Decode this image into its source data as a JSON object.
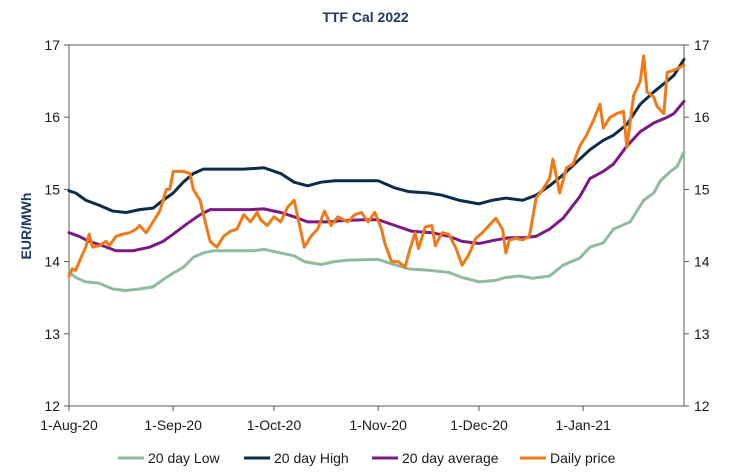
{
  "chart_data": {
    "type": "line",
    "title": "TTF Cal 2022",
    "ylabel": "EUR/MWh",
    "xlabel": "",
    "ylim": [
      12,
      17
    ],
    "yticks": [
      "12",
      "13",
      "14",
      "15",
      "16",
      "17"
    ],
    "secondary_yticks": [
      "12",
      "13",
      "14",
      "15",
      "16",
      "17"
    ],
    "xlim": [
      "2020-08-01",
      "2021-01-31"
    ],
    "xticks": [
      {
        "label": "1-Aug-20",
        "date": "2020-08-01"
      },
      {
        "label": "1-Sep-20",
        "date": "2020-09-01"
      },
      {
        "label": "1-Oct-20",
        "date": "2020-10-01"
      },
      {
        "label": "1-Nov-20",
        "date": "2020-11-01"
      },
      {
        "label": "1-Dec-20",
        "date": "2020-12-01"
      },
      {
        "label": "1-Jan-21",
        "date": "2021-01-01"
      }
    ],
    "grid": "none",
    "legend_position": "bottom",
    "series": [
      {
        "name": "20 day Low",
        "color": "#8fbc9f",
        "points": [
          [
            "2020-08-01",
            13.85
          ],
          [
            "2020-08-03",
            13.78
          ],
          [
            "2020-08-06",
            13.72
          ],
          [
            "2020-08-10",
            13.7
          ],
          [
            "2020-08-14",
            13.62
          ],
          [
            "2020-08-18",
            13.6
          ],
          [
            "2020-08-22",
            13.62
          ],
          [
            "2020-08-26",
            13.65
          ],
          [
            "2020-08-29",
            13.75
          ],
          [
            "2020-09-01",
            13.84
          ],
          [
            "2020-09-04",
            13.92
          ],
          [
            "2020-09-07",
            14.06
          ],
          [
            "2020-09-10",
            14.12
          ],
          [
            "2020-09-13",
            14.15
          ],
          [
            "2020-09-18",
            14.15
          ],
          [
            "2020-09-25",
            14.15
          ],
          [
            "2020-09-28",
            14.17
          ],
          [
            "2020-10-03",
            14.12
          ],
          [
            "2020-10-07",
            14.08
          ],
          [
            "2020-10-10",
            14.0
          ],
          [
            "2020-10-15",
            13.96
          ],
          [
            "2020-10-19",
            14.0
          ],
          [
            "2020-10-23",
            14.02
          ],
          [
            "2020-11-01",
            14.03
          ],
          [
            "2020-11-05",
            13.97
          ],
          [
            "2020-11-10",
            13.9
          ],
          [
            "2020-11-16",
            13.88
          ],
          [
            "2020-11-22",
            13.85
          ],
          [
            "2020-11-26",
            13.78
          ],
          [
            "2020-12-01",
            13.72
          ],
          [
            "2020-12-06",
            13.74
          ],
          [
            "2020-12-09",
            13.78
          ],
          [
            "2020-12-13",
            13.8
          ],
          [
            "2020-12-17",
            13.77
          ],
          [
            "2020-12-22",
            13.8
          ],
          [
            "2020-12-26",
            13.95
          ],
          [
            "2020-12-31",
            14.05
          ],
          [
            "2021-01-03",
            14.2
          ],
          [
            "2021-01-07",
            14.26
          ],
          [
            "2021-01-10",
            14.45
          ],
          [
            "2021-01-15",
            14.55
          ],
          [
            "2021-01-19",
            14.85
          ],
          [
            "2021-01-22",
            14.95
          ],
          [
            "2021-01-24",
            15.12
          ],
          [
            "2021-01-27",
            15.25
          ],
          [
            "2021-01-29",
            15.32
          ],
          [
            "2021-01-31",
            15.52
          ]
        ]
      },
      {
        "name": "20 day High",
        "color": "#0d2c4a",
        "points": [
          [
            "2020-08-01",
            14.98
          ],
          [
            "2020-08-03",
            14.95
          ],
          [
            "2020-08-06",
            14.85
          ],
          [
            "2020-08-10",
            14.78
          ],
          [
            "2020-08-14",
            14.7
          ],
          [
            "2020-08-18",
            14.68
          ],
          [
            "2020-08-22",
            14.72
          ],
          [
            "2020-08-26",
            14.74
          ],
          [
            "2020-08-29",
            14.85
          ],
          [
            "2020-09-01",
            14.95
          ],
          [
            "2020-09-04",
            15.1
          ],
          [
            "2020-09-07",
            15.22
          ],
          [
            "2020-09-10",
            15.28
          ],
          [
            "2020-09-14",
            15.28
          ],
          [
            "2020-09-22",
            15.28
          ],
          [
            "2020-09-28",
            15.3
          ],
          [
            "2020-10-03",
            15.22
          ],
          [
            "2020-10-07",
            15.1
          ],
          [
            "2020-10-11",
            15.05
          ],
          [
            "2020-10-15",
            15.1
          ],
          [
            "2020-10-19",
            15.12
          ],
          [
            "2020-10-26",
            15.12
          ],
          [
            "2020-11-01",
            15.12
          ],
          [
            "2020-11-06",
            15.02
          ],
          [
            "2020-11-10",
            14.97
          ],
          [
            "2020-11-16",
            14.95
          ],
          [
            "2020-11-20",
            14.92
          ],
          [
            "2020-11-25",
            14.85
          ],
          [
            "2020-12-01",
            14.8
          ],
          [
            "2020-12-05",
            14.85
          ],
          [
            "2020-12-09",
            14.88
          ],
          [
            "2020-12-14",
            14.85
          ],
          [
            "2020-12-18",
            14.92
          ],
          [
            "2020-12-22",
            15.05
          ],
          [
            "2020-12-26",
            15.2
          ],
          [
            "2020-12-31",
            15.42
          ],
          [
            "2021-01-03",
            15.55
          ],
          [
            "2021-01-07",
            15.68
          ],
          [
            "2021-01-10",
            15.75
          ],
          [
            "2021-01-14",
            15.9
          ],
          [
            "2021-01-18",
            16.18
          ],
          [
            "2021-01-22",
            16.35
          ],
          [
            "2021-01-26",
            16.5
          ],
          [
            "2021-01-28",
            16.58
          ],
          [
            "2021-01-31",
            16.8
          ]
        ]
      },
      {
        "name": "20 day average",
        "color": "#7b1a86",
        "points": [
          [
            "2020-08-01",
            14.4
          ],
          [
            "2020-08-04",
            14.35
          ],
          [
            "2020-08-07",
            14.28
          ],
          [
            "2020-08-11",
            14.22
          ],
          [
            "2020-08-15",
            14.15
          ],
          [
            "2020-08-20",
            14.15
          ],
          [
            "2020-08-25",
            14.2
          ],
          [
            "2020-08-29",
            14.28
          ],
          [
            "2020-09-01",
            14.38
          ],
          [
            "2020-09-05",
            14.52
          ],
          [
            "2020-09-09",
            14.65
          ],
          [
            "2020-09-12",
            14.72
          ],
          [
            "2020-09-18",
            14.72
          ],
          [
            "2020-09-24",
            14.72
          ],
          [
            "2020-09-28",
            14.73
          ],
          [
            "2020-10-03",
            14.68
          ],
          [
            "2020-10-07",
            14.62
          ],
          [
            "2020-10-11",
            14.55
          ],
          [
            "2020-10-17",
            14.55
          ],
          [
            "2020-10-22",
            14.57
          ],
          [
            "2020-10-28",
            14.58
          ],
          [
            "2020-11-01",
            14.58
          ],
          [
            "2020-11-06",
            14.5
          ],
          [
            "2020-11-11",
            14.42
          ],
          [
            "2020-11-17",
            14.4
          ],
          [
            "2020-11-22",
            14.35
          ],
          [
            "2020-11-26",
            14.28
          ],
          [
            "2020-12-01",
            14.25
          ],
          [
            "2020-12-06",
            14.3
          ],
          [
            "2020-12-10",
            14.33
          ],
          [
            "2020-12-14",
            14.33
          ],
          [
            "2020-12-18",
            14.35
          ],
          [
            "2020-12-22",
            14.45
          ],
          [
            "2020-12-26",
            14.6
          ],
          [
            "2020-12-31",
            14.9
          ],
          [
            "2021-01-03",
            15.15
          ],
          [
            "2021-01-07",
            15.25
          ],
          [
            "2021-01-10",
            15.35
          ],
          [
            "2021-01-14",
            15.6
          ],
          [
            "2021-01-18",
            15.8
          ],
          [
            "2021-01-22",
            15.92
          ],
          [
            "2021-01-26",
            16.0
          ],
          [
            "2021-01-28",
            16.05
          ],
          [
            "2021-01-31",
            16.22
          ]
        ]
      },
      {
        "name": "Daily price",
        "color": "#f07a18",
        "points": [
          [
            "2020-08-01",
            13.8
          ],
          [
            "2020-08-02",
            13.9
          ],
          [
            "2020-08-03",
            13.88
          ],
          [
            "2020-08-05",
            14.1
          ],
          [
            "2020-08-06",
            14.2
          ],
          [
            "2020-08-07",
            14.38
          ],
          [
            "2020-08-08",
            14.2
          ],
          [
            "2020-08-10",
            14.22
          ],
          [
            "2020-08-12",
            14.28
          ],
          [
            "2020-08-13",
            14.22
          ],
          [
            "2020-08-15",
            14.35
          ],
          [
            "2020-08-17",
            14.38
          ],
          [
            "2020-08-19",
            14.4
          ],
          [
            "2020-08-21",
            14.45
          ],
          [
            "2020-08-22",
            14.5
          ],
          [
            "2020-08-24",
            14.4
          ],
          [
            "2020-08-26",
            14.55
          ],
          [
            "2020-08-28",
            14.7
          ],
          [
            "2020-08-30",
            15.0
          ],
          [
            "2020-08-31",
            15.0
          ],
          [
            "2020-09-01",
            15.25
          ],
          [
            "2020-09-04",
            15.25
          ],
          [
            "2020-09-06",
            15.22
          ],
          [
            "2020-09-07",
            15.0
          ],
          [
            "2020-09-09",
            14.85
          ],
          [
            "2020-09-10",
            14.65
          ],
          [
            "2020-09-12",
            14.28
          ],
          [
            "2020-09-14",
            14.2
          ],
          [
            "2020-09-16",
            14.35
          ],
          [
            "2020-09-18",
            14.42
          ],
          [
            "2020-09-20",
            14.45
          ],
          [
            "2020-09-22",
            14.65
          ],
          [
            "2020-09-24",
            14.55
          ],
          [
            "2020-09-26",
            14.68
          ],
          [
            "2020-09-27",
            14.58
          ],
          [
            "2020-09-29",
            14.5
          ],
          [
            "2020-10-01",
            14.62
          ],
          [
            "2020-10-03",
            14.55
          ],
          [
            "2020-10-05",
            14.75
          ],
          [
            "2020-10-07",
            14.85
          ],
          [
            "2020-10-10",
            14.2
          ],
          [
            "2020-10-12",
            14.35
          ],
          [
            "2020-10-14",
            14.45
          ],
          [
            "2020-10-16",
            14.7
          ],
          [
            "2020-10-18",
            14.5
          ],
          [
            "2020-10-20",
            14.62
          ],
          [
            "2020-10-23",
            14.55
          ],
          [
            "2020-10-25",
            14.65
          ],
          [
            "2020-10-27",
            14.68
          ],
          [
            "2020-10-29",
            14.55
          ],
          [
            "2020-10-31",
            14.68
          ],
          [
            "2020-11-02",
            14.45
          ],
          [
            "2020-11-03",
            14.25
          ],
          [
            "2020-11-05",
            14.0
          ],
          [
            "2020-11-07",
            14.0
          ],
          [
            "2020-11-09",
            13.92
          ],
          [
            "2020-11-10",
            14.1
          ],
          [
            "2020-11-12",
            14.4
          ],
          [
            "2020-11-13",
            14.18
          ],
          [
            "2020-11-15",
            14.48
          ],
          [
            "2020-11-17",
            14.5
          ],
          [
            "2020-11-18",
            14.22
          ],
          [
            "2020-11-20",
            14.4
          ],
          [
            "2020-11-22",
            14.38
          ],
          [
            "2020-11-24",
            14.2
          ],
          [
            "2020-11-26",
            13.95
          ],
          [
            "2020-11-28",
            14.1
          ],
          [
            "2020-11-30",
            14.32
          ],
          [
            "2020-12-02",
            14.4
          ],
          [
            "2020-12-04",
            14.5
          ],
          [
            "2020-12-06",
            14.6
          ],
          [
            "2020-12-08",
            14.45
          ],
          [
            "2020-12-09",
            14.12
          ],
          [
            "2020-12-10",
            14.3
          ],
          [
            "2020-12-12",
            14.32
          ],
          [
            "2020-12-14",
            14.3
          ],
          [
            "2020-12-16",
            14.35
          ],
          [
            "2020-12-18",
            14.88
          ],
          [
            "2020-12-20",
            15.0
          ],
          [
            "2020-12-22",
            15.15
          ],
          [
            "2020-12-23",
            15.42
          ],
          [
            "2020-12-25",
            14.95
          ],
          [
            "2020-12-27",
            15.3
          ],
          [
            "2020-12-29",
            15.35
          ],
          [
            "2020-12-31",
            15.6
          ],
          [
            "2021-01-02",
            15.75
          ],
          [
            "2021-01-04",
            15.95
          ],
          [
            "2021-01-06",
            16.18
          ],
          [
            "2021-01-07",
            15.85
          ],
          [
            "2021-01-09",
            16.0
          ],
          [
            "2021-01-11",
            16.05
          ],
          [
            "2021-01-13",
            16.08
          ],
          [
            "2021-01-14",
            15.58
          ],
          [
            "2021-01-16",
            16.3
          ],
          [
            "2021-01-18",
            16.5
          ],
          [
            "2021-01-19",
            16.85
          ],
          [
            "2021-01-20",
            16.35
          ],
          [
            "2021-01-22",
            16.28
          ],
          [
            "2021-01-23",
            16.15
          ],
          [
            "2021-01-25",
            16.05
          ],
          [
            "2021-01-26",
            16.62
          ],
          [
            "2021-01-28",
            16.65
          ],
          [
            "2021-01-31",
            16.72
          ]
        ]
      }
    ]
  }
}
